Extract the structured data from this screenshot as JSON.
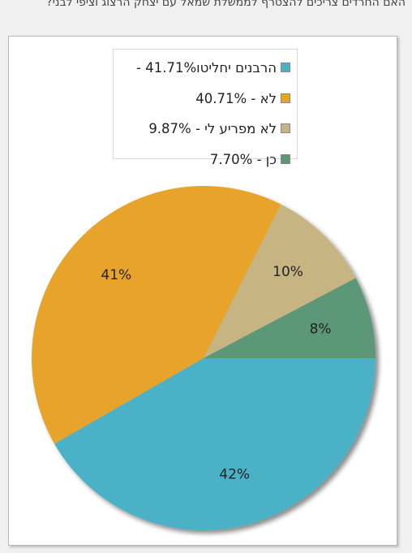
{
  "question": "האם החרדים צריכים להצטרף לממשלת שמאל עם יצחק הרצוג וציפי לבני?",
  "chart_data": {
    "type": "pie",
    "categories": [
      "הרבנים יחליטו",
      "לא",
      "לא מפריע לי",
      "כן"
    ],
    "values": [
      41.71,
      40.71,
      9.87,
      7.7
    ],
    "legend_labels": [
      "הרבנים יחליטו41.71% -",
      "לא - 40.71%",
      "לא מפריע לי - 9.87%",
      "כן - 7.70%"
    ],
    "data_labels": [
      "42%",
      "41%",
      "10%",
      "8%"
    ],
    "colors": [
      "#4bb1c6",
      "#e8a42a",
      "#c6b583",
      "#5c9878"
    ],
    "legend_position": "top"
  }
}
